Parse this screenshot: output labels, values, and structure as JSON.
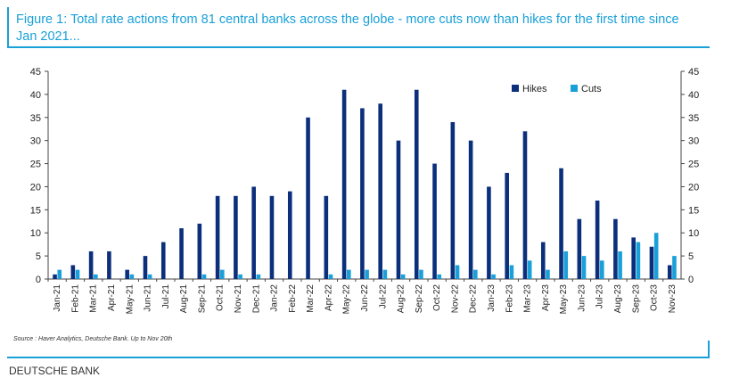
{
  "title": "Figure 1: Total rate actions from 81 central banks across the globe - more cuts now than hikes for the first time since Jan 2021...",
  "source": "Source : Haver Analytics, Deutsche Bank. Up to Nov 20th",
  "credit": "DEUTSCHE BANK",
  "colors": {
    "hikes": "#0c2f7c",
    "cuts": "#1aa0d8",
    "accent": "#1aa0d8"
  },
  "chart_data": {
    "type": "bar",
    "categories": [
      "Jan-21",
      "Feb-21",
      "Mar-21",
      "Apr-21",
      "May-21",
      "Jun-21",
      "Jul-21",
      "Aug-21",
      "Sep-21",
      "Oct-21",
      "Nov-21",
      "Dec-21",
      "Jan-22",
      "Feb-22",
      "Mar-22",
      "Apr-22",
      "May-22",
      "Jun-22",
      "Jul-22",
      "Aug-22",
      "Sep-22",
      "Oct-22",
      "Nov-22",
      "Dec-22",
      "Jan-23",
      "Feb-23",
      "Mar-23",
      "Apr-23",
      "May-23",
      "Jun-23",
      "Jul-23",
      "Aug-23",
      "Sep-23",
      "Oct-23",
      "Nov-23"
    ],
    "series": [
      {
        "name": "Hikes",
        "values": [
          1,
          3,
          6,
          6,
          2,
          5,
          8,
          11,
          12,
          18,
          18,
          20,
          18,
          19,
          35,
          18,
          41,
          37,
          38,
          30,
          41,
          25,
          34,
          30,
          20,
          23,
          32,
          8,
          24,
          13,
          17,
          13,
          9,
          7,
          3
        ]
      },
      {
        "name": "Cuts",
        "values": [
          2,
          2,
          1,
          0,
          1,
          1,
          0,
          0,
          1,
          2,
          1,
          1,
          0,
          0,
          0,
          1,
          2,
          2,
          2,
          1,
          2,
          1,
          3,
          2,
          1,
          3,
          4,
          2,
          6,
          5,
          4,
          6,
          8,
          10,
          5
        ]
      }
    ],
    "ylim": [
      0,
      45
    ],
    "yticks": [
      0,
      5,
      10,
      15,
      20,
      25,
      30,
      35,
      40,
      45
    ],
    "xlabel": "",
    "ylabel": "",
    "legend_position": "top-right",
    "grid": false,
    "dual_y_axis": true
  }
}
